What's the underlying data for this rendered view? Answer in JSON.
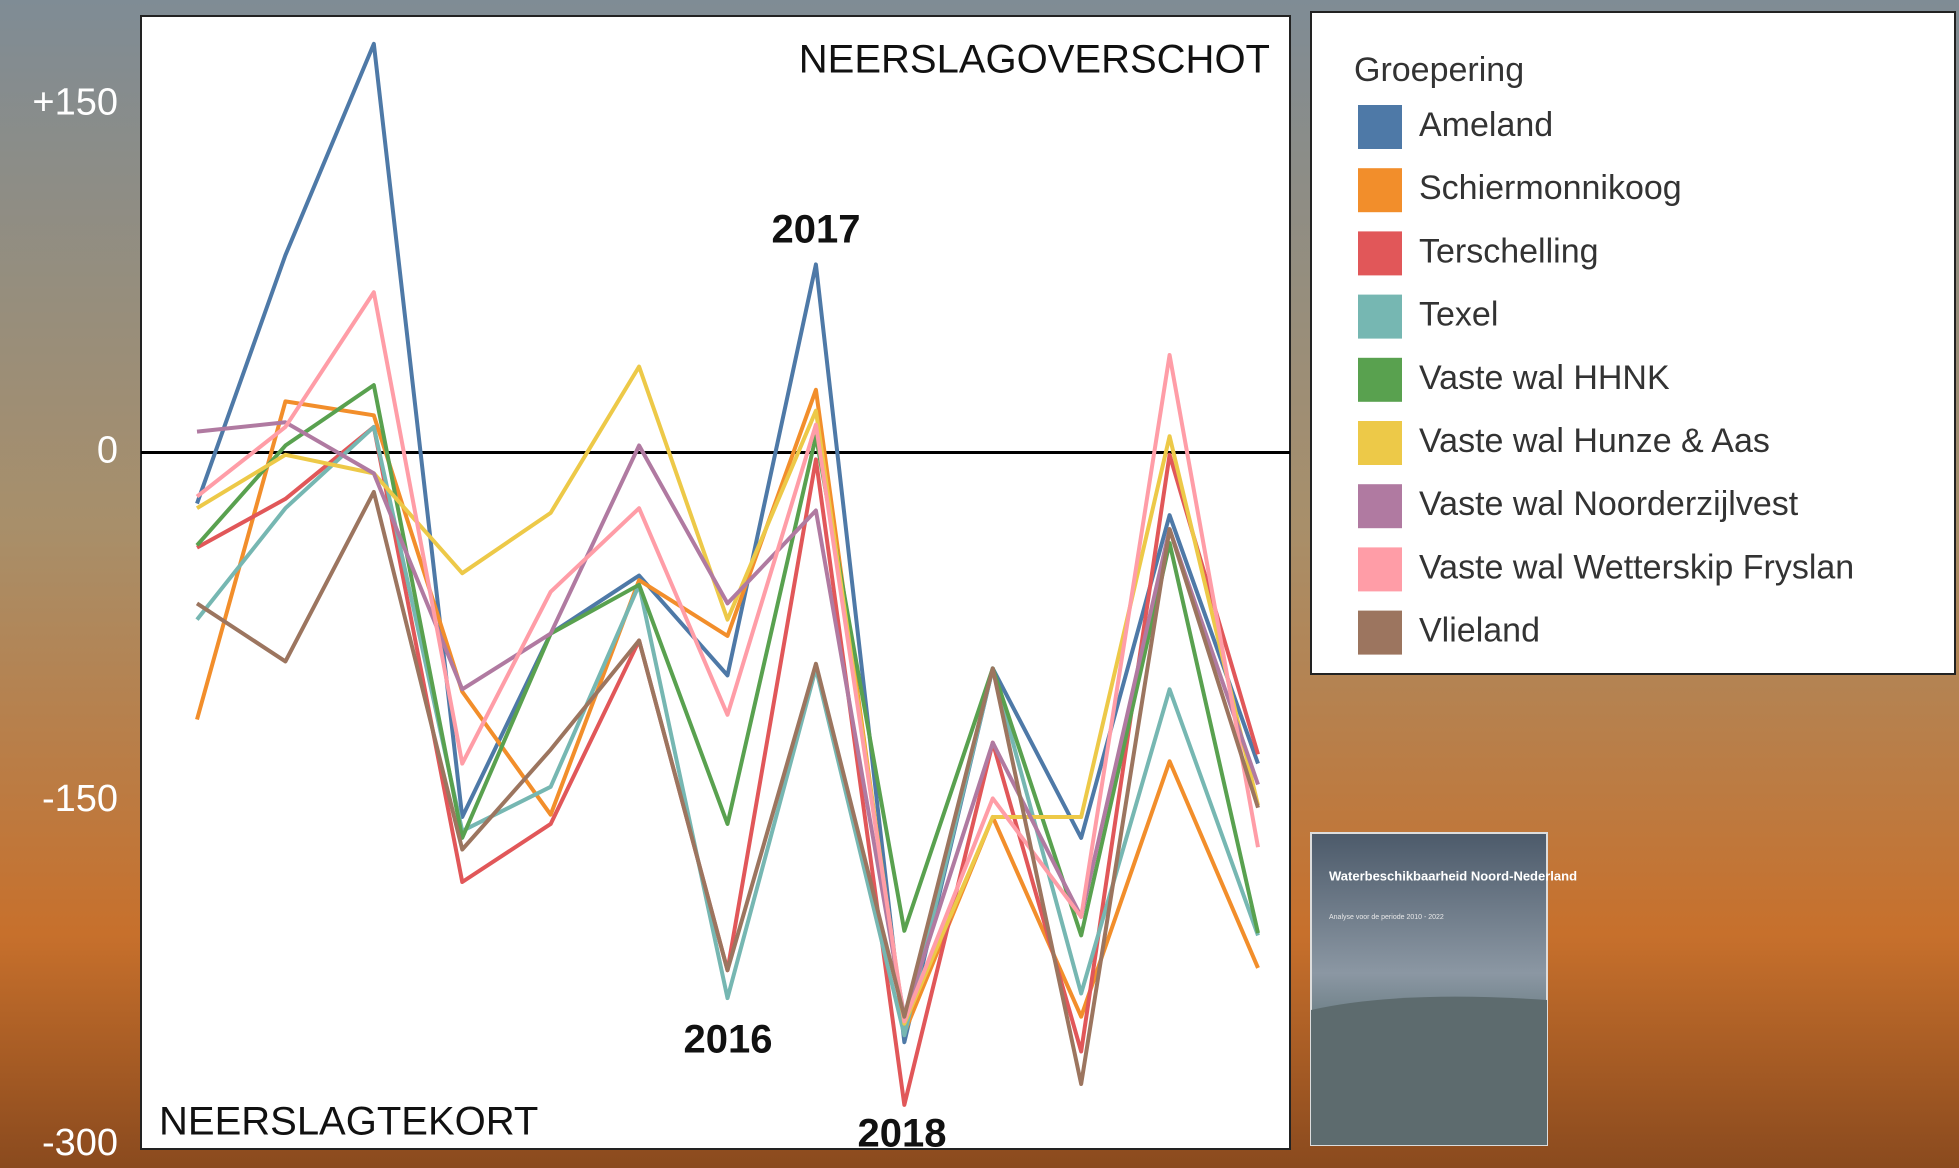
{
  "chart_data": {
    "type": "line",
    "annotations": [
      "NEERSLAGOVERSCHOT",
      "NEERSLAGTEKORT",
      "2017",
      "2016",
      "2018"
    ],
    "legend_title": "Groepering",
    "legend": "right",
    "categories": [
      null,
      null,
      null,
      null,
      null,
      null,
      null,
      null,
      null,
      null,
      null,
      null,
      null
    ],
    "ylim": [
      -300,
      188
    ],
    "yticks": [
      {
        "value": 150,
        "label": "+150"
      },
      0,
      -150,
      -300
    ],
    "zero_line": true,
    "series": [
      {
        "name": "Ameland",
        "color": "#4e79a7",
        "values": [
          -22,
          85,
          176,
          -157,
          -78,
          -53,
          -96,
          81,
          -254,
          -93,
          -166,
          -27,
          -134
        ]
      },
      {
        "name": "Schiermonnikoog",
        "color": "#f28e2b",
        "values": [
          -115,
          22,
          16,
          -103,
          -156,
          -55,
          -79,
          27,
          -250,
          -157,
          -243,
          -133,
          -222
        ]
      },
      {
        "name": "Terschelling",
        "color": "#e15759",
        "values": [
          -41,
          -20,
          11,
          -185,
          -160,
          -81,
          -223,
          -3,
          -281,
          -125,
          -258,
          -1,
          -130
        ]
      },
      {
        "name": "Texel",
        "color": "#76b7b2",
        "values": [
          -72,
          -24,
          11,
          -163,
          -144,
          -57,
          -235,
          -93,
          -251,
          -93,
          -233,
          -102,
          -208
        ]
      },
      {
        "name": "Vaste wal HHNK",
        "color": "#59a14f",
        "values": [
          -40,
          3,
          29,
          -166,
          -78,
          -57,
          -160,
          7,
          -206,
          -93,
          -208,
          -39,
          -207
        ]
      },
      {
        "name": "Vaste wal Hunze & Aas",
        "color": "#edc948",
        "values": [
          -24,
          -1,
          -9,
          -52,
          -26,
          37,
          -72,
          18,
          -246,
          -157,
          -157,
          7,
          -152
        ]
      },
      {
        "name": "Vaste wal Noorderzijlvest",
        "color": "#b07aa1",
        "values": [
          9,
          13,
          -9,
          -102,
          -78,
          3,
          -65,
          -25,
          -243,
          -125,
          -200,
          -33,
          -143
        ]
      },
      {
        "name": "Vaste wal Wetterskip Fryslan",
        "color": "#ff9da7",
        "values": [
          -19,
          11,
          69,
          -134,
          -60,
          -24,
          -113,
          12,
          -245,
          -149,
          -200,
          42,
          -170
        ]
      },
      {
        "name": "Vlieland",
        "color": "#9c755f",
        "values": [
          -65,
          -90,
          -17,
          -171,
          -128,
          -81,
          -223,
          -91,
          -243,
          -93,
          -272,
          -33,
          -153
        ]
      }
    ]
  },
  "thumbnail": {
    "title": "Waterbeschikbaarheid Noord-Nederland",
    "subtitle": "Analyse voor de periode 2010 - 2022"
  }
}
